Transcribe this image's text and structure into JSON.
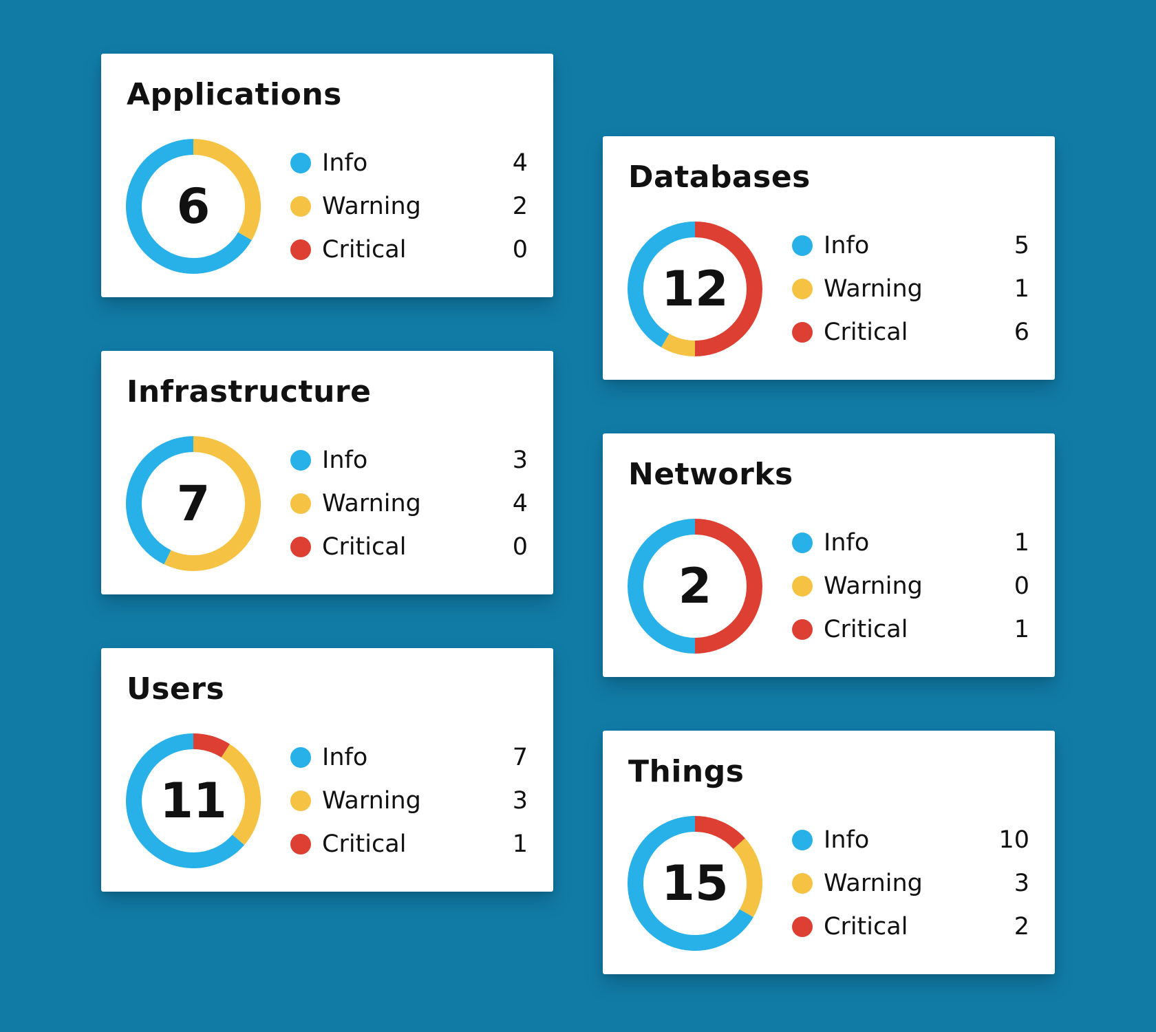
{
  "colors": {
    "background": "#117ba6",
    "info": "#27b1e8",
    "warning": "#f6c244",
    "critical": "#dd4033"
  },
  "legend_labels": {
    "info": "Info",
    "warning": "Warning",
    "critical": "Critical"
  },
  "chart_data": [
    {
      "type": "pie",
      "title": "Applications",
      "total": "6",
      "categories": [
        "Info",
        "Warning",
        "Critical"
      ],
      "values": [
        4,
        2,
        0
      ]
    },
    {
      "type": "pie",
      "title": "Databases",
      "total": "12",
      "categories": [
        "Info",
        "Warning",
        "Critical"
      ],
      "values": [
        5,
        1,
        6
      ]
    },
    {
      "type": "pie",
      "title": "Infrastructure",
      "total": "7",
      "categories": [
        "Info",
        "Warning",
        "Critical"
      ],
      "values": [
        3,
        4,
        0
      ]
    },
    {
      "type": "pie",
      "title": "Networks",
      "total": "2",
      "categories": [
        "Info",
        "Warning",
        "Critical"
      ],
      "values": [
        1,
        0,
        1
      ]
    },
    {
      "type": "pie",
      "title": "Users",
      "total": "11",
      "categories": [
        "Info",
        "Warning",
        "Critical"
      ],
      "values": [
        7,
        3,
        1
      ]
    },
    {
      "type": "pie",
      "title": "Things",
      "total": "15",
      "categories": [
        "Info",
        "Warning",
        "Critical"
      ],
      "values": [
        10,
        3,
        2
      ]
    }
  ]
}
